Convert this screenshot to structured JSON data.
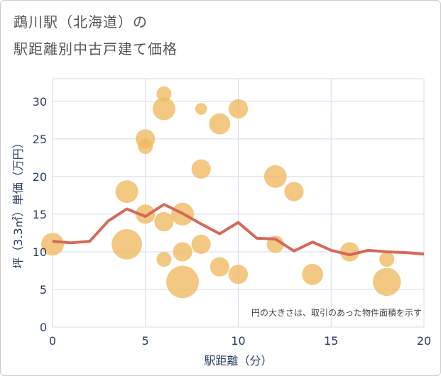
{
  "title_line1": "鵡川駅（北海道）の",
  "title_line2": "駅距離別中古戸建て価格",
  "note": "円の大きさは、取引のあった物件面積を示す",
  "colors": {
    "bubble": "#f0b960",
    "line": "#d4695a",
    "grid": "#d0dcea",
    "axis_text": "#2a3f5f"
  },
  "chart_data": {
    "type": "scatter",
    "xlabel": "駅距離（分）",
    "ylabel": "坪（3.3㎡）単価（万円）",
    "xlim": [
      0,
      20
    ],
    "ylim": [
      0,
      33
    ],
    "xticks": [
      0,
      5,
      10,
      15,
      20
    ],
    "yticks": [
      0,
      5,
      10,
      15,
      20,
      25,
      30
    ],
    "bubbles": [
      {
        "x": 0,
        "y": 11,
        "size": 3
      },
      {
        "x": 4,
        "y": 11,
        "size": 6
      },
      {
        "x": 4,
        "y": 18,
        "size": 3
      },
      {
        "x": 5,
        "y": 25,
        "size": 2
      },
      {
        "x": 5,
        "y": 24,
        "size": 1
      },
      {
        "x": 5,
        "y": 15,
        "size": 2
      },
      {
        "x": 6,
        "y": 31,
        "size": 1
      },
      {
        "x": 6,
        "y": 29,
        "size": 3
      },
      {
        "x": 6,
        "y": 14,
        "size": 2
      },
      {
        "x": 6,
        "y": 9,
        "size": 1
      },
      {
        "x": 7,
        "y": 15,
        "size": 3
      },
      {
        "x": 7,
        "y": 10,
        "size": 2
      },
      {
        "x": 7,
        "y": 6,
        "size": 7
      },
      {
        "x": 8,
        "y": 29,
        "size": 0.5
      },
      {
        "x": 8,
        "y": 21,
        "size": 2
      },
      {
        "x": 8,
        "y": 11,
        "size": 2
      },
      {
        "x": 9,
        "y": 27,
        "size": 2.5
      },
      {
        "x": 9,
        "y": 8,
        "size": 2
      },
      {
        "x": 10,
        "y": 29,
        "size": 2
      },
      {
        "x": 10,
        "y": 7,
        "size": 2
      },
      {
        "x": 12,
        "y": 20,
        "size": 3
      },
      {
        "x": 12,
        "y": 11,
        "size": 1.5
      },
      {
        "x": 13,
        "y": 18,
        "size": 2
      },
      {
        "x": 14,
        "y": 7,
        "size": 2.5
      },
      {
        "x": 16,
        "y": 10,
        "size": 2
      },
      {
        "x": 18,
        "y": 9,
        "size": 1
      },
      {
        "x": 18,
        "y": 6,
        "size": 5
      }
    ],
    "trend_line": {
      "x": [
        0,
        1,
        2,
        3,
        4,
        5,
        6,
        7,
        8,
        9,
        10,
        11,
        12,
        13,
        14,
        15,
        16,
        17,
        18,
        19,
        20
      ],
      "y": [
        11.4,
        11.2,
        11.4,
        14.1,
        15.7,
        14.7,
        16.3,
        15.1,
        13.7,
        12.4,
        13.9,
        11.8,
        11.7,
        10.1,
        11.3,
        10.2,
        9.6,
        10.2,
        10.0,
        9.9,
        9.7
      ]
    }
  }
}
